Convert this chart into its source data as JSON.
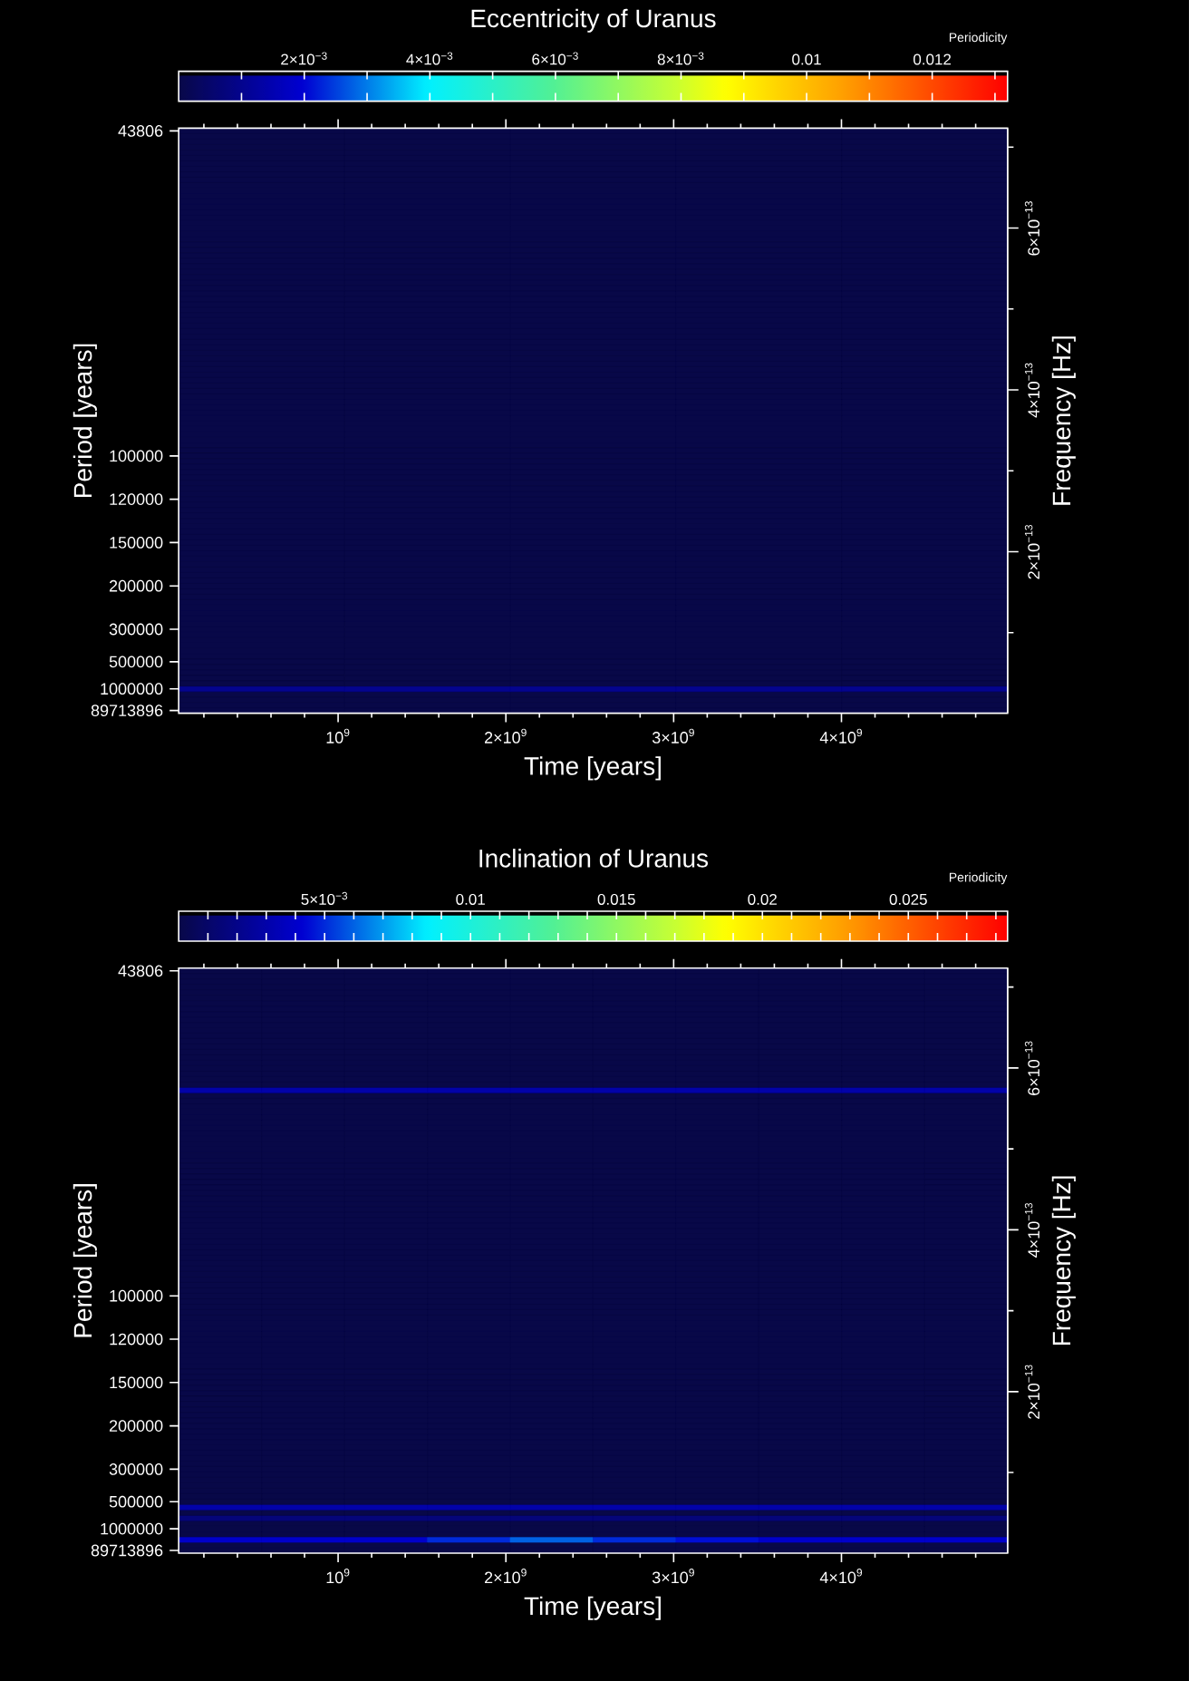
{
  "chart_data": [
    {
      "type": "heatmap",
      "title": "Eccentricity of Uranus",
      "xlabel": "Time [years]",
      "ylabel": "Period [years]",
      "y2label": "Frequency [Hz]",
      "clabel": "Periodicity",
      "x": [
        544000000.0,
        1532000000.0,
        2520000000.0,
        3508000000.0,
        4496000000.0
      ],
      "y_categories": [
        "43806",
        null,
        null,
        null,
        null,
        null,
        null,
        null,
        null,
        null,
        null,
        null,
        null,
        null,
        null,
        null,
        null,
        null,
        null,
        null,
        null,
        null,
        null,
        null,
        null,
        null,
        null,
        null,
        null,
        null,
        null,
        null,
        null,
        null,
        null,
        null,
        null,
        null,
        null,
        null,
        null,
        null,
        null,
        null,
        null,
        null,
        null,
        null,
        null,
        null,
        null,
        null,
        null,
        null,
        null,
        null,
        null,
        null,
        null,
        null,
        "100000",
        null,
        null,
        null,
        null,
        null,
        null,
        null,
        "120000",
        null,
        null,
        null,
        null,
        null,
        null,
        null,
        "150000",
        null,
        null,
        null,
        null,
        null,
        null,
        null,
        "200000",
        null,
        null,
        null,
        null,
        null,
        null,
        null,
        "300000",
        null,
        null,
        null,
        null,
        null,
        "500000",
        null,
        null,
        null,
        null,
        "1000000",
        null,
        null,
        null,
        "89713896"
      ],
      "cells": [
        [
          0,
          0,
          0,
          0,
          0
        ],
        [
          0,
          0,
          0,
          0,
          0
        ],
        [
          0,
          0,
          0,
          0,
          0
        ],
        [
          0,
          0,
          0,
          0,
          0
        ],
        [
          0,
          0,
          0,
          0,
          0
        ],
        [
          0,
          0,
          0,
          0,
          0
        ],
        [
          0,
          0,
          0,
          0,
          0
        ],
        [
          0,
          0,
          0,
          0,
          0
        ],
        [
          0,
          0,
          0,
          0,
          0
        ],
        [
          0,
          0,
          0,
          0,
          0
        ],
        [
          0,
          0,
          0,
          0,
          0
        ],
        [
          0,
          0,
          0,
          0,
          0
        ],
        [
          0,
          0,
          0,
          0,
          0
        ],
        [
          0,
          0,
          0,
          0,
          0
        ],
        [
          0,
          0,
          0,
          0,
          0
        ],
        [
          0,
          0,
          0,
          0,
          0
        ],
        [
          0,
          0,
          0,
          0,
          0
        ],
        [
          0,
          0,
          0,
          0,
          0
        ],
        [
          0,
          0,
          0,
          0,
          0
        ],
        [
          0,
          0,
          0,
          0,
          0
        ],
        [
          0,
          0,
          0,
          0,
          0
        ],
        [
          0,
          0,
          0,
          0,
          0
        ],
        [
          0,
          0,
          0,
          0,
          0
        ],
        [
          0,
          0,
          0,
          0,
          0
        ],
        [
          0,
          0,
          0,
          0,
          0
        ],
        [
          0,
          0,
          0,
          0,
          0
        ],
        [
          0,
          0,
          0,
          0,
          0
        ],
        [
          0,
          0,
          0,
          0,
          0
        ],
        [
          0,
          0,
          0,
          0,
          0
        ],
        [
          0,
          0,
          0,
          0,
          0
        ],
        [
          0,
          0,
          0,
          0,
          0
        ],
        [
          0,
          0,
          0,
          0,
          0
        ],
        [
          0,
          0,
          0,
          0,
          0
        ],
        [
          0,
          0,
          0,
          0,
          0
        ],
        [
          0,
          0,
          0,
          0,
          0
        ],
        [
          0,
          0,
          0,
          0,
          0
        ],
        [
          0,
          0,
          0,
          0,
          0
        ],
        [
          0,
          0,
          0,
          0,
          0
        ],
        [
          0,
          0,
          0,
          0,
          0
        ],
        [
          0,
          0,
          0,
          0,
          0
        ],
        [
          0,
          0,
          0,
          0,
          0
        ],
        [
          0,
          0,
          0,
          0,
          0
        ],
        [
          0,
          0,
          0,
          0,
          0
        ],
        [
          0,
          0,
          0,
          0,
          0
        ],
        [
          0,
          0,
          0,
          0,
          0
        ],
        [
          0,
          0,
          0,
          0,
          0
        ],
        [
          0,
          0,
          0,
          0,
          0
        ],
        [
          0,
          0,
          0,
          0,
          0
        ],
        [
          0,
          0,
          0,
          0,
          0
        ],
        [
          0,
          0,
          0,
          0,
          0
        ],
        [
          0,
          0,
          0,
          0,
          0
        ],
        [
          0,
          0,
          0,
          0,
          0
        ],
        [
          0,
          0,
          0,
          0,
          0
        ],
        [
          0,
          0,
          0,
          0,
          0
        ],
        [
          0,
          0,
          0,
          0,
          0
        ],
        [
          0,
          0,
          0,
          0,
          0
        ],
        [
          0,
          0,
          0,
          0,
          0
        ],
        [
          0,
          0,
          0,
          0,
          0
        ],
        [
          0,
          0,
          0,
          0,
          0
        ],
        [
          0,
          0,
          0,
          0,
          0
        ],
        [
          0,
          0,
          0,
          0,
          0
        ],
        [
          0,
          0,
          0,
          0,
          0
        ],
        [
          0,
          0,
          0,
          0,
          0
        ],
        [
          0,
          0,
          0,
          0,
          0
        ],
        [
          0,
          0,
          0,
          0,
          0
        ],
        [
          0,
          0,
          0,
          0,
          0
        ],
        [
          0,
          0,
          0,
          0,
          0
        ],
        [
          0,
          0,
          0,
          0,
          0
        ],
        [
          0,
          0,
          0,
          0,
          0
        ],
        [
          0,
          0,
          0,
          0,
          0
        ],
        [
          0,
          0,
          0,
          0,
          0
        ],
        [
          0,
          0,
          0,
          0,
          0
        ],
        [
          0,
          0,
          0,
          0,
          0
        ],
        [
          0,
          0,
          0,
          0,
          0
        ],
        [
          0,
          0,
          0,
          0,
          0
        ],
        [
          0,
          0,
          0,
          0,
          0
        ],
        [
          0,
          0,
          0,
          0,
          0
        ],
        [
          0,
          0,
          0,
          0,
          0
        ],
        [
          0,
          0,
          0,
          0,
          0
        ],
        [
          0,
          0,
          0,
          0,
          0
        ],
        [
          0,
          0,
          0,
          0,
          0
        ],
        [
          0,
          0,
          0,
          0,
          0
        ],
        [
          0,
          0,
          0,
          0,
          0
        ],
        [
          0,
          0,
          0,
          0,
          0
        ],
        [
          0,
          0,
          0,
          0,
          0
        ],
        [
          0,
          0,
          0,
          0,
          0
        ],
        [
          0,
          0,
          0,
          0,
          0
        ],
        [
          0,
          0,
          0,
          0,
          0
        ],
        [
          0,
          0,
          0,
          0,
          0
        ],
        [
          0,
          0,
          0,
          0,
          0
        ],
        [
          0,
          0,
          0,
          0,
          0
        ],
        [
          0,
          0,
          0,
          0,
          0
        ],
        [
          0,
          0,
          0,
          0,
          0
        ],
        [
          0,
          0,
          0,
          0,
          0
        ],
        [
          0,
          0,
          0,
          0,
          0
        ],
        [
          0,
          0,
          0,
          0,
          0
        ],
        [
          0,
          0,
          0,
          0,
          0
        ],
        [
          0,
          0,
          0,
          0,
          0
        ],
        [
          0,
          0,
          0,
          0,
          0
        ],
        [
          0,
          0,
          0,
          0,
          0
        ],
        [
          0,
          0,
          0,
          0,
          0
        ],
        [
          0,
          0,
          0,
          0,
          0
        ],
        [
          0,
          0,
          0,
          0,
          0
        ],
        [
          0.001,
          0.001,
          0.001,
          0.001,
          0.001
        ],
        [
          0,
          0,
          0,
          0,
          0
        ],
        [
          0,
          0,
          0,
          0,
          0
        ],
        [
          0,
          0,
          0,
          0,
          0
        ],
        [
          0,
          0,
          0,
          0,
          0
        ]
      ],
      "clim": [
        0,
        0.0132
      ],
      "cticks": [
        {
          "value": 0.001,
          "label": null
        },
        {
          "value": 0.002,
          "label": "2×10$^{−3}$"
        },
        {
          "value": 0.003,
          "label": null
        },
        {
          "value": 0.004,
          "label": "4×10$^{−3}$"
        },
        {
          "value": 0.005,
          "label": null
        },
        {
          "value": 0.006,
          "label": "6×10$^{−3}$"
        },
        {
          "value": 0.007,
          "label": null
        },
        {
          "value": 0.008,
          "label": "8×10$^{−3}$"
        },
        {
          "value": 0.009,
          "label": null
        },
        0.01,
        {
          "value": 0.011,
          "label": null
        },
        0.012,
        {
          "value": 0.013,
          "label": null
        }
      ],
      "xlim": [
        50000000.0,
        4990000000.0
      ],
      "xticks": [
        {
          "value": 200000000.0,
          "label": null
        },
        {
          "value": 400000000.0,
          "label": null
        },
        {
          "value": 600000000.0,
          "label": null
        },
        {
          "value": 800000000.0,
          "label": null
        },
        {
          "value": 1000000000.0,
          "label": "10$^{9}$"
        },
        {
          "value": 1200000000.0,
          "label": null
        },
        {
          "value": 1400000000.0,
          "label": null
        },
        {
          "value": 1600000000.0,
          "label": null
        },
        {
          "value": 1800000000.0,
          "label": null
        },
        {
          "value": 2000000000.0,
          "label": "2×10$^{9}$"
        },
        {
          "value": 2200000000.0,
          "label": null
        },
        {
          "value": 2400000000.0,
          "label": null
        },
        {
          "value": 2600000000.0,
          "label": null
        },
        {
          "value": 2800000000.0,
          "label": null
        },
        {
          "value": 3000000000.0,
          "label": "3×10$^{9}$"
        },
        {
          "value": 3200000000.0,
          "label": null
        },
        {
          "value": 3400000000.0,
          "label": null
        },
        {
          "value": 3600000000.0,
          "label": null
        },
        {
          "value": 3800000000.0,
          "label": null
        },
        {
          "value": 4000000000.0,
          "label": "4×10$^{9}$"
        },
        {
          "value": 4200000000.0,
          "label": null
        },
        {
          "value": 4400000000.0,
          "label": null
        },
        {
          "value": 4600000000.0,
          "label": null
        },
        {
          "value": 4800000000.0,
          "label": null
        }
      ],
      "y2lim": [
        3.532e-16,
        7.234e-13
      ],
      "y2ticks": [
        {
          "value": 1e-13,
          "label": null
        },
        {
          "value": 2e-13,
          "label": "2×10$^{−13}$"
        },
        {
          "value": 3e-13,
          "label": null
        },
        {
          "value": 4e-13,
          "label": "4×10$^{−13}$"
        },
        {
          "value": 5e-13,
          "label": null
        },
        {
          "value": 6e-13,
          "label": "6×10$^{−13}$"
        },
        {
          "value": 7e-13,
          "label": null
        }
      ]
    },
    {
      "type": "heatmap",
      "title": "Inclination of Uranus",
      "xlabel": "Time [years]",
      "ylabel": "Period [years]",
      "y2label": "Frequency [Hz]",
      "clabel": "Periodicity",
      "x": [
        297000000.0,
        791000000.0,
        1285000000.0,
        1779000000.0,
        2273000000.0,
        2767000000.0,
        3261000000.0,
        3755000000.0,
        4249000000.0,
        4743000000.0
      ],
      "y_categories": [
        "43806",
        null,
        null,
        null,
        null,
        null,
        null,
        null,
        null,
        null,
        null,
        null,
        null,
        null,
        null,
        null,
        null,
        null,
        null,
        null,
        null,
        null,
        null,
        null,
        null,
        null,
        null,
        null,
        null,
        null,
        null,
        null,
        null,
        null,
        null,
        null,
        null,
        null,
        null,
        null,
        null,
        null,
        null,
        null,
        null,
        null,
        null,
        null,
        null,
        null,
        null,
        null,
        null,
        null,
        null,
        null,
        null,
        null,
        null,
        null,
        "100000",
        null,
        null,
        null,
        null,
        null,
        null,
        null,
        "120000",
        null,
        null,
        null,
        null,
        null,
        null,
        null,
        "150000",
        null,
        null,
        null,
        null,
        null,
        null,
        null,
        "200000",
        null,
        null,
        null,
        null,
        null,
        null,
        null,
        "300000",
        null,
        null,
        null,
        null,
        null,
        "500000",
        null,
        null,
        null,
        null,
        "1000000",
        null,
        null,
        null,
        "89713896"
      ],
      "cells": [
        [
          0,
          0,
          0,
          0,
          0,
          0,
          0,
          0,
          0,
          0
        ],
        [
          0,
          0,
          0,
          0,
          0,
          0,
          0,
          0,
          0,
          0
        ],
        [
          0,
          0,
          0,
          0,
          0,
          0,
          0,
          0,
          0,
          0
        ],
        [
          0,
          0,
          0,
          0,
          0,
          0,
          0,
          0,
          0,
          0
        ],
        [
          0,
          0,
          0,
          0,
          0,
          0,
          0,
          0,
          0,
          0
        ],
        [
          0,
          0,
          0,
          0,
          0,
          0,
          0,
          0,
          0,
          0
        ],
        [
          0,
          0,
          0,
          0,
          0,
          0,
          0,
          0,
          0,
          0
        ],
        [
          0,
          0,
          0,
          0,
          0,
          0,
          0,
          0,
          0,
          0
        ],
        [
          0,
          0,
          0,
          0,
          0,
          0,
          0,
          0,
          0,
          0
        ],
        [
          0,
          0,
          0,
          0,
          0,
          0,
          0,
          0,
          0,
          0
        ],
        [
          0,
          0,
          0,
          0,
          0,
          0,
          0,
          0,
          0,
          0
        ],
        [
          0,
          0,
          0,
          0,
          0,
          0,
          0,
          0,
          0,
          0
        ],
        [
          0,
          0,
          0,
          0,
          0,
          0,
          0,
          0,
          0,
          0
        ],
        [
          0,
          0,
          0,
          0,
          0,
          0,
          0,
          0,
          0,
          0
        ],
        [
          0,
          0,
          0,
          0,
          0,
          0,
          0,
          0,
          0,
          0
        ],
        [
          0,
          0,
          0,
          0,
          0,
          0,
          0,
          0,
          0,
          0
        ],
        [
          0,
          0,
          0,
          0,
          0,
          0,
          0,
          0,
          0,
          0
        ],
        [
          0,
          0,
          0,
          0,
          0,
          0,
          0,
          0,
          0,
          0
        ],
        [
          0,
          0,
          0,
          0,
          0,
          0,
          0,
          0,
          0,
          0
        ],
        [
          0,
          0,
          0,
          0,
          0,
          0,
          0,
          0,
          0,
          0
        ],
        [
          0,
          0,
          0,
          0,
          0,
          0,
          0,
          0,
          0,
          0
        ],
        [
          0,
          0,
          0,
          0,
          0,
          0,
          0,
          0,
          0,
          0
        ],
        [
          0.003,
          0.003,
          0.003,
          0.003,
          0.003,
          0.003,
          0.003,
          0.003,
          0.003,
          0.003
        ],
        [
          0,
          0,
          0,
          0,
          0,
          0,
          0,
          0,
          0,
          0
        ],
        [
          0,
          0,
          0,
          0,
          0,
          0,
          0,
          0,
          0,
          0
        ],
        [
          0,
          0,
          0,
          0,
          0,
          0,
          0,
          0,
          0,
          0
        ],
        [
          0,
          0,
          0,
          0,
          0,
          0,
          0,
          0,
          0,
          0
        ],
        [
          0,
          0,
          0,
          0,
          0,
          0,
          0,
          0,
          0,
          0
        ],
        [
          0,
          0,
          0,
          0,
          0,
          0,
          0,
          0,
          0,
          0
        ],
        [
          0,
          0,
          0,
          0,
          0,
          0,
          0,
          0,
          0,
          0
        ],
        [
          0,
          0,
          0,
          0,
          0,
          0,
          0,
          0,
          0,
          0
        ],
        [
          0,
          0,
          0,
          0,
          0,
          0,
          0,
          0,
          0,
          0
        ],
        [
          0,
          0,
          0,
          0,
          0,
          0,
          0,
          0,
          0,
          0
        ],
        [
          0,
          0,
          0,
          0,
          0,
          0,
          0,
          0,
          0,
          0
        ],
        [
          0,
          0,
          0,
          0,
          0,
          0,
          0,
          0,
          0,
          0
        ],
        [
          0,
          0,
          0,
          0,
          0,
          0,
          0,
          0,
          0,
          0
        ],
        [
          0,
          0,
          0,
          0,
          0,
          0,
          0,
          0,
          0,
          0
        ],
        [
          0,
          0,
          0,
          0,
          0,
          0,
          0,
          0,
          0,
          0
        ],
        [
          0,
          0,
          0,
          0,
          0,
          0,
          0,
          0,
          0,
          0
        ],
        [
          0,
          0,
          0,
          0,
          0,
          0,
          0,
          0,
          0,
          0
        ],
        [
          0,
          0,
          0,
          0,
          0,
          0,
          0,
          0,
          0,
          0
        ],
        [
          0,
          0,
          0,
          0,
          0,
          0,
          0,
          0,
          0,
          0
        ],
        [
          0,
          0,
          0,
          0,
          0,
          0,
          0,
          0,
          0,
          0
        ],
        [
          0,
          0,
          0,
          0,
          0,
          0,
          0,
          0,
          0,
          0
        ],
        [
          0,
          0,
          0,
          0,
          0,
          0,
          0,
          0,
          0,
          0
        ],
        [
          0,
          0,
          0,
          0,
          0,
          0,
          0,
          0,
          0,
          0
        ],
        [
          0,
          0,
          0,
          0,
          0,
          0,
          0,
          0,
          0,
          0
        ],
        [
          0,
          0,
          0,
          0,
          0,
          0,
          0,
          0,
          0,
          0
        ],
        [
          0,
          0,
          0,
          0,
          0,
          0,
          0,
          0,
          0,
          0
        ],
        [
          0,
          0,
          0,
          0,
          0,
          0,
          0,
          0,
          0,
          0
        ],
        [
          0,
          0,
          0,
          0,
          0,
          0,
          0,
          0,
          0,
          0
        ],
        [
          0,
          0,
          0,
          0,
          0,
          0,
          0,
          0,
          0,
          0
        ],
        [
          0,
          0,
          0,
          0,
          0,
          0,
          0,
          0,
          0,
          0
        ],
        [
          0,
          0,
          0,
          0,
          0,
          0,
          0,
          0,
          0,
          0
        ],
        [
          0,
          0,
          0,
          0,
          0,
          0,
          0,
          0,
          0,
          0
        ],
        [
          0,
          0,
          0,
          0,
          0,
          0,
          0,
          0,
          0,
          0
        ],
        [
          0,
          0,
          0,
          0,
          0,
          0,
          0,
          0,
          0,
          0
        ],
        [
          0,
          0,
          0,
          0,
          0,
          0,
          0,
          0,
          0,
          0
        ],
        [
          0,
          0,
          0,
          0,
          0,
          0,
          0,
          0,
          0,
          0
        ],
        [
          0,
          0,
          0,
          0,
          0,
          0,
          0,
          0,
          0,
          0
        ],
        [
          0,
          0,
          0,
          0,
          0,
          0,
          0,
          0,
          0,
          0
        ],
        [
          0,
          0,
          0,
          0,
          0,
          0,
          0,
          0,
          0,
          0
        ],
        [
          0,
          0,
          0,
          0,
          0,
          0,
          0,
          0,
          0,
          0
        ],
        [
          0,
          0,
          0,
          0,
          0,
          0,
          0,
          0,
          0,
          0
        ],
        [
          0,
          0,
          0,
          0,
          0,
          0,
          0,
          0,
          0,
          0
        ],
        [
          0,
          0,
          0,
          0,
          0,
          0,
          0,
          0,
          0,
          0
        ],
        [
          0,
          0,
          0,
          0,
          0,
          0,
          0,
          0,
          0,
          0
        ],
        [
          0,
          0,
          0,
          0,
          0,
          0,
          0,
          0,
          0,
          0
        ],
        [
          0,
          0,
          0,
          0,
          0,
          0,
          0,
          0,
          0,
          0
        ],
        [
          0,
          0,
          0,
          0,
          0,
          0,
          0,
          0,
          0,
          0
        ],
        [
          0,
          0,
          0,
          0,
          0,
          0,
          0,
          0,
          0,
          0
        ],
        [
          0,
          0,
          0,
          0,
          0,
          0,
          0,
          0,
          0,
          0
        ],
        [
          0,
          0,
          0,
          0,
          0,
          0,
          0,
          0,
          0,
          0
        ],
        [
          0,
          0,
          0,
          0,
          0,
          0,
          0,
          0,
          0,
          0
        ],
        [
          0,
          0,
          0,
          0,
          0,
          0,
          0,
          0,
          0,
          0
        ],
        [
          0,
          0,
          0,
          0,
          0,
          0,
          0,
          0,
          0,
          0
        ],
        [
          0,
          0,
          0,
          0,
          0,
          0,
          0,
          0,
          0,
          0
        ],
        [
          0,
          0,
          0,
          0,
          0,
          0,
          0,
          0,
          0,
          0
        ],
        [
          0,
          0,
          0,
          0,
          0,
          0,
          0,
          0,
          0,
          0
        ],
        [
          0,
          0,
          0,
          0,
          0,
          0,
          0,
          0,
          0,
          0
        ],
        [
          0,
          0,
          0,
          0,
          0,
          0,
          0,
          0,
          0,
          0
        ],
        [
          0,
          0,
          0,
          0,
          0,
          0,
          0,
          0,
          0,
          0
        ],
        [
          0,
          0,
          0,
          0,
          0,
          0,
          0,
          0,
          0,
          0
        ],
        [
          0,
          0,
          0,
          0,
          0,
          0,
          0,
          0,
          0,
          0
        ],
        [
          0,
          0,
          0,
          0,
          0,
          0,
          0,
          0,
          0,
          0
        ],
        [
          0,
          0,
          0,
          0,
          0,
          0,
          0,
          0,
          0,
          0
        ],
        [
          0,
          0,
          0,
          0,
          0,
          0,
          0,
          0,
          0,
          0
        ],
        [
          0,
          0,
          0,
          0,
          0,
          0,
          0,
          0,
          0,
          0
        ],
        [
          0,
          0,
          0,
          0,
          0,
          0,
          0,
          0,
          0,
          0
        ],
        [
          0,
          0,
          0,
          0,
          0,
          0,
          0,
          0,
          0,
          0
        ],
        [
          0,
          0,
          0,
          0,
          0,
          0,
          0,
          0,
          0,
          0
        ],
        [
          0,
          0,
          0,
          0,
          0,
          0,
          0,
          0,
          0,
          0
        ],
        [
          0,
          0,
          0,
          0,
          0,
          0,
          0,
          0,
          0,
          0
        ],
        [
          0,
          0,
          0,
          0,
          0,
          0,
          0,
          0,
          0,
          0
        ],
        [
          0,
          0,
          0,
          0,
          0,
          0,
          0,
          0,
          0,
          0
        ],
        [
          0,
          0,
          0,
          0,
          0,
          0,
          0,
          0,
          0,
          0
        ],
        [
          0,
          0,
          0,
          0,
          0,
          0,
          0,
          0,
          0,
          0
        ],
        [
          0,
          0,
          0,
          0,
          0,
          0,
          0,
          0,
          0,
          0
        ],
        [
          0,
          0,
          0,
          0,
          0,
          0,
          0,
          0,
          0,
          0
        ],
        [
          0.003,
          0.003,
          0.003,
          0.003,
          0.003,
          0.003,
          0.003,
          0.003,
          0.003,
          0.003
        ],
        [
          0,
          0,
          0,
          0,
          0,
          0,
          0,
          0,
          0,
          0
        ],
        [
          0.0015,
          0.0015,
          0.0015,
          0.0015,
          0.0015,
          0.0015,
          0.0015,
          0.0015,
          0.0015,
          0.0015
        ],
        [
          0,
          0,
          0,
          0,
          0,
          0,
          0,
          0,
          0,
          0
        ],
        [
          0,
          0,
          0,
          0,
          0,
          0,
          0,
          0,
          0,
          0
        ],
        [
          0,
          0,
          0,
          0,
          0,
          0,
          0,
          0,
          0,
          0
        ],
        [
          0.004,
          0.004,
          0.004,
          0.005,
          0.006,
          0.005,
          0.0045,
          0.004,
          0.004,
          0.004
        ],
        [
          0,
          0,
          0,
          0,
          0,
          0,
          0,
          0,
          0,
          0
        ],
        [
          0,
          0,
          0,
          0,
          0,
          0,
          0,
          0,
          0,
          0
        ]
      ],
      "clim": [
        0,
        0.0284
      ],
      "cticks": [
        {
          "value": 0.001,
          "label": null
        },
        {
          "value": 0.002,
          "label": null
        },
        {
          "value": 0.003,
          "label": null
        },
        {
          "value": 0.004,
          "label": null
        },
        {
          "value": 0.005,
          "label": "5×10$^{−3}$"
        },
        {
          "value": 0.006,
          "label": null
        },
        {
          "value": 0.007,
          "label": null
        },
        {
          "value": 0.008,
          "label": null
        },
        {
          "value": 0.009,
          "label": null
        },
        0.01,
        {
          "value": 0.011,
          "label": null
        },
        {
          "value": 0.012,
          "label": null
        },
        {
          "value": 0.013,
          "label": null
        },
        {
          "value": 0.014,
          "label": null
        },
        0.015,
        {
          "value": 0.016,
          "label": null
        },
        {
          "value": 0.017,
          "label": null
        },
        {
          "value": 0.018,
          "label": null
        },
        {
          "value": 0.019,
          "label": null
        },
        0.02,
        {
          "value": 0.021,
          "label": null
        },
        {
          "value": 0.022,
          "label": null
        },
        {
          "value": 0.023,
          "label": null
        },
        {
          "value": 0.024,
          "label": null
        },
        0.025,
        {
          "value": 0.026,
          "label": null
        },
        {
          "value": 0.027,
          "label": null
        },
        {
          "value": 0.028,
          "label": null
        }
      ],
      "xlim": [
        50000000.0,
        4990000000.0
      ],
      "xticks": [
        {
          "value": 200000000.0,
          "label": null
        },
        {
          "value": 400000000.0,
          "label": null
        },
        {
          "value": 600000000.0,
          "label": null
        },
        {
          "value": 800000000.0,
          "label": null
        },
        {
          "value": 1000000000.0,
          "label": "10$^{9}$"
        },
        {
          "value": 1200000000.0,
          "label": null
        },
        {
          "value": 1400000000.0,
          "label": null
        },
        {
          "value": 1600000000.0,
          "label": null
        },
        {
          "value": 1800000000.0,
          "label": null
        },
        {
          "value": 2000000000.0,
          "label": "2×10$^{9}$"
        },
        {
          "value": 2200000000.0,
          "label": null
        },
        {
          "value": 2400000000.0,
          "label": null
        },
        {
          "value": 2600000000.0,
          "label": null
        },
        {
          "value": 2800000000.0,
          "label": null
        },
        {
          "value": 3000000000.0,
          "label": "3×10$^{9}$"
        },
        {
          "value": 3200000000.0,
          "label": null
        },
        {
          "value": 3400000000.0,
          "label": null
        },
        {
          "value": 3600000000.0,
          "label": null
        },
        {
          "value": 3800000000.0,
          "label": null
        },
        {
          "value": 4000000000.0,
          "label": "4×10$^{9}$"
        },
        {
          "value": 4200000000.0,
          "label": null
        },
        {
          "value": 4400000000.0,
          "label": null
        },
        {
          "value": 4600000000.0,
          "label": null
        },
        {
          "value": 4800000000.0,
          "label": null
        }
      ],
      "y2lim": [
        3.532e-16,
        7.234e-13
      ],
      "y2ticks": [
        {
          "value": 1e-13,
          "label": null
        },
        {
          "value": 2e-13,
          "label": "2×10$^{−13}$"
        },
        {
          "value": 3e-13,
          "label": null
        },
        {
          "value": 4e-13,
          "label": "4×10$^{−13}$"
        },
        {
          "value": 5e-13,
          "label": null
        },
        {
          "value": 6e-13,
          "label": "6×10$^{−13}$"
        },
        {
          "value": 7e-13,
          "label": null
        }
      ]
    }
  ]
}
